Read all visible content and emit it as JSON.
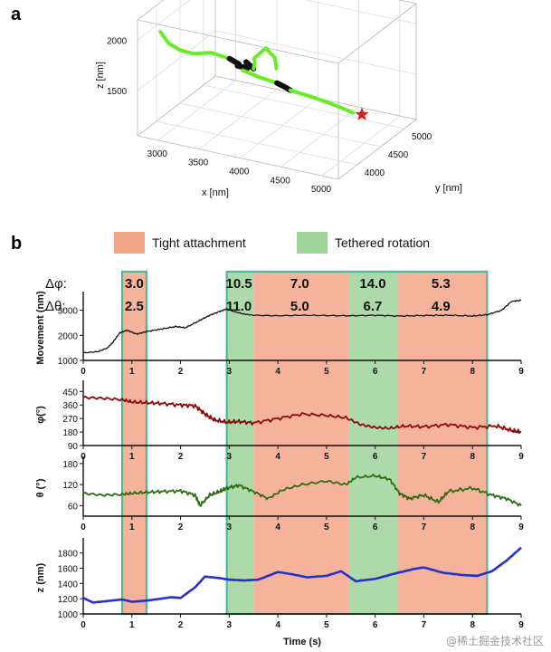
{
  "panel_a_label": "a",
  "panel_b_label": "b",
  "watermark": "@稀土掘金技术社区",
  "chart_data": [
    {
      "type": "line3d",
      "panel": "a",
      "xlabel": "x [nm]",
      "ylabel": "y [nm]",
      "zlabel": "z [nm]",
      "x_ticks": [
        "3000",
        "3500",
        "4000",
        "4500",
        "5000"
      ],
      "y_ticks": [
        "4000",
        "4500",
        "5000"
      ],
      "z_ticks": [
        "1500",
        "2000"
      ],
      "xlim": [
        2750,
        5200
      ],
      "ylim": [
        3600,
        5250
      ],
      "zlim": [
        1050,
        2200
      ],
      "end_marker": "red star",
      "colors": {
        "segment_free": "#66ee22",
        "segment_bound": "#111111",
        "marker": "#cc2222"
      },
      "series": [
        {
          "kind": "free",
          "points": [
            [
              3030,
              3600,
              2130
            ],
            [
              3080,
              3680,
              2000
            ],
            [
              3140,
              3820,
              1890
            ],
            [
              3220,
              3980,
              1810
            ],
            [
              3330,
              4150,
              1780
            ],
            [
              3480,
              4280,
              1700
            ]
          ]
        },
        {
          "kind": "bound",
          "points": [
            [
              3480,
              4280,
              1700
            ],
            [
              3560,
              4340,
              1640
            ],
            [
              3520,
              4380,
              1600
            ],
            [
              3620,
              4420,
              1580
            ],
            [
              3580,
              4460,
              1620
            ],
            [
              3660,
              4480,
              1560
            ]
          ]
        },
        {
          "kind": "free",
          "points": [
            [
              3660,
              4480,
              1560
            ],
            [
              3720,
              4400,
              1660
            ],
            [
              3760,
              4320,
              1740
            ],
            [
              3820,
              4460,
              1800
            ],
            [
              3840,
              4620,
              1650
            ],
            [
              3800,
              4720,
              1500
            ]
          ]
        },
        {
          "kind": "free",
          "points": [
            [
              3400,
              4700,
              1420
            ],
            [
              3560,
              4760,
              1360
            ],
            [
              3760,
              4800,
              1320
            ]
          ]
        },
        {
          "kind": "bound",
          "points": [
            [
              3760,
              4800,
              1320
            ],
            [
              3840,
              4820,
              1290
            ],
            [
              3900,
              4840,
              1260
            ]
          ]
        },
        {
          "kind": "free",
          "points": [
            [
              3900,
              4840,
              1260
            ],
            [
              4150,
              4880,
              1220
            ],
            [
              4400,
              4920,
              1170
            ],
            [
              4600,
              4950,
              1120
            ]
          ]
        }
      ],
      "end_point": [
        4600,
        4950,
        1120
      ]
    },
    {
      "type": "timeseries-stack",
      "panel": "b",
      "legend": [
        {
          "label": "Tight attachment",
          "color": "#f2a688"
        },
        {
          "label": "Tethered rotation",
          "color": "#9fd49a"
        }
      ],
      "x": {
        "label": "Time (s)",
        "lim": [
          0,
          9
        ],
        "ticks": [
          0,
          1,
          2,
          3,
          4,
          5,
          6,
          7,
          8,
          9
        ]
      },
      "bands": [
        {
          "start": 0.8,
          "end": 1.3,
          "type": "Tight attachment"
        },
        {
          "start": 2.95,
          "end": 3.5,
          "type": "Tethered rotation"
        },
        {
          "start": 3.5,
          "end": 5.45,
          "type": "Tight attachment"
        },
        {
          "start": 5.45,
          "end": 6.45,
          "type": "Tethered rotation"
        },
        {
          "start": 6.45,
          "end": 8.3,
          "type": "Tight attachment"
        }
      ],
      "box_groups": [
        [
          0.8,
          1.3
        ],
        [
          2.95,
          8.3
        ]
      ],
      "annotations": {
        "dphi_label": "Δφ:",
        "dtheta_label": "Δθ:",
        "dphi": [
          {
            "t": 1.05,
            "value": "3.0"
          },
          {
            "t": 3.2,
            "value": "10.5"
          },
          {
            "t": 4.45,
            "value": "7.0"
          },
          {
            "t": 5.95,
            "value": "14.0"
          },
          {
            "t": 7.35,
            "value": "5.3"
          }
        ],
        "dtheta": [
          {
            "t": 1.05,
            "value": "2.5"
          },
          {
            "t": 3.2,
            "value": "11.0"
          },
          {
            "t": 4.45,
            "value": "5.0"
          },
          {
            "t": 5.95,
            "value": "6.7"
          },
          {
            "t": 7.35,
            "value": "4.9"
          }
        ]
      },
      "panels": [
        {
          "name": "movement",
          "ylabel": "Movement (nm)",
          "ylim": [
            1000,
            3600
          ],
          "yticks": [
            1000,
            2000,
            3000
          ],
          "color": "#111111",
          "line_width": 1.3,
          "t": [
            0,
            0.3,
            0.5,
            0.6,
            0.75,
            0.9,
            1.1,
            1.3,
            1.6,
            1.9,
            2.1,
            2.4,
            2.6,
            2.8,
            2.95,
            3.1,
            3.3,
            3.5,
            4.0,
            4.5,
            5.0,
            5.5,
            6.0,
            6.5,
            7.0,
            7.5,
            8.0,
            8.3,
            8.6,
            8.8,
            9.0
          ],
          "values": [
            1300,
            1350,
            1500,
            1700,
            2100,
            2200,
            2050,
            2150,
            2250,
            2350,
            2300,
            2600,
            2800,
            2950,
            3050,
            2950,
            2850,
            2800,
            2780,
            2800,
            2790,
            2780,
            2800,
            2770,
            2790,
            2800,
            2770,
            2820,
            3000,
            3350,
            3400
          ]
        },
        {
          "name": "phi",
          "ylabel": "φ(°)",
          "ylim": [
            90,
            500
          ],
          "yticks": [
            90,
            180,
            270,
            360,
            450
          ],
          "color": "#8b0a0a",
          "line_width": 1.8,
          "t": [
            0,
            0.4,
            0.8,
            1.0,
            1.3,
            1.6,
            2.0,
            2.3,
            2.5,
            2.7,
            2.95,
            3.2,
            3.5,
            4.0,
            4.5,
            5.0,
            5.4,
            5.7,
            6.0,
            6.3,
            6.6,
            7.0,
            7.5,
            8.0,
            8.5,
            8.8,
            9.0
          ],
          "values": [
            410,
            405,
            395,
            380,
            375,
            370,
            360,
            355,
            300,
            260,
            245,
            250,
            240,
            270,
            300,
            290,
            275,
            230,
            210,
            205,
            220,
            215,
            230,
            210,
            220,
            190,
            180
          ]
        },
        {
          "name": "theta",
          "ylabel": "θ (°)",
          "ylim": [
            30,
            190
          ],
          "yticks": [
            60,
            120,
            180
          ],
          "color": "#2e6e12",
          "line_width": 1.8,
          "t": [
            0,
            0.4,
            0.8,
            1.0,
            1.3,
            1.6,
            2.0,
            2.3,
            2.4,
            2.6,
            2.8,
            2.95,
            3.2,
            3.5,
            3.8,
            4.1,
            4.5,
            5.0,
            5.4,
            5.6,
            6.0,
            6.3,
            6.5,
            6.7,
            7.0,
            7.3,
            7.5,
            8.0,
            8.4,
            8.7,
            9.0
          ],
          "values": [
            95,
            90,
            92,
            95,
            98,
            100,
            102,
            90,
            60,
            90,
            100,
            110,
            118,
            100,
            80,
            105,
            120,
            130,
            120,
            140,
            145,
            135,
            95,
            80,
            90,
            70,
            100,
            110,
            90,
            80,
            60
          ]
        },
        {
          "name": "z",
          "ylabel": "z (nm)",
          "ylim": [
            1000,
            1950
          ],
          "yticks": [
            1000,
            1200,
            1400,
            1600,
            1800
          ],
          "color": "#2631c7",
          "line_width": 2.6,
          "t": [
            0,
            0.2,
            0.5,
            0.8,
            1.0,
            1.3,
            1.6,
            1.8,
            2.0,
            2.3,
            2.5,
            2.8,
            3.0,
            3.3,
            3.6,
            4.0,
            4.3,
            4.6,
            5.0,
            5.3,
            5.6,
            6.0,
            6.4,
            6.8,
            7.0,
            7.4,
            7.8,
            8.1,
            8.4,
            8.7,
            9.0
          ],
          "values": [
            1210,
            1150,
            1170,
            1190,
            1160,
            1175,
            1200,
            1220,
            1210,
            1350,
            1490,
            1470,
            1450,
            1440,
            1450,
            1550,
            1520,
            1480,
            1500,
            1560,
            1430,
            1460,
            1530,
            1590,
            1610,
            1540,
            1510,
            1500,
            1560,
            1700,
            1870
          ]
        }
      ]
    }
  ]
}
